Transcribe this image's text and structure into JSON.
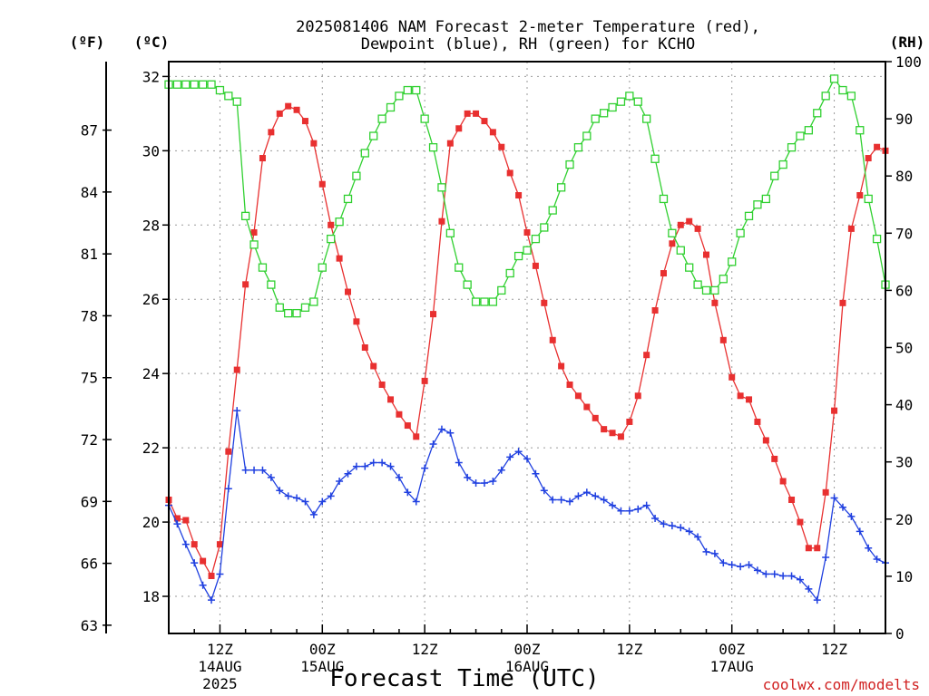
{
  "chart_data": {
    "type": "line",
    "title_line1": "2025081406 NAM Forecast 2-meter Temperature (red),",
    "title_line2": "Dewpoint (blue), RH (green) for KCHO",
    "xlabel": "Forecast Time (UTC)",
    "credit": "coolwx.com/modelts",
    "unit_f": "(ºF)",
    "unit_c": "(ºC)",
    "unit_rh": "(RH)",
    "x_range_hours": [
      6,
      90
    ],
    "c_range": [
      17,
      32.4
    ],
    "rh_range": [
      0,
      100
    ],
    "grid": true,
    "c_ticks": [
      18,
      20,
      22,
      24,
      26,
      28,
      30,
      32
    ],
    "f_ticks": [
      63,
      66,
      69,
      72,
      75,
      78,
      81,
      84,
      87
    ],
    "rh_ticks": [
      0,
      10,
      20,
      30,
      40,
      50,
      60,
      70,
      80,
      90,
      100
    ],
    "x_ticks": [
      {
        "hour": 12,
        "line1": "12Z",
        "line2": "14AUG",
        "line3": "2025"
      },
      {
        "hour": 24,
        "line1": "00Z",
        "line2": "15AUG",
        "line3": ""
      },
      {
        "hour": 36,
        "line1": "12Z",
        "line2": "",
        "line3": ""
      },
      {
        "hour": 48,
        "line1": "00Z",
        "line2": "16AUG",
        "line3": ""
      },
      {
        "hour": 60,
        "line1": "12Z",
        "line2": "",
        "line3": ""
      },
      {
        "hour": 72,
        "line1": "00Z",
        "line2": "17AUG",
        "line3": ""
      },
      {
        "hour": 84,
        "line1": "12Z",
        "line2": "",
        "line3": ""
      }
    ],
    "series": [
      {
        "key": "temperature",
        "color": "#e83030",
        "marker": "filled-square",
        "axis": "c",
        "x": [
          6,
          7,
          8,
          9,
          10,
          11,
          12,
          13,
          14,
          15,
          16,
          17,
          18,
          19,
          20,
          21,
          22,
          23,
          24,
          25,
          26,
          27,
          28,
          29,
          30,
          31,
          32,
          33,
          34,
          35,
          36,
          37,
          38,
          39,
          40,
          41,
          42,
          43,
          44,
          45,
          46,
          47,
          48,
          49,
          50,
          51,
          52,
          53,
          54,
          55,
          56,
          57,
          58,
          59,
          60,
          61,
          62,
          63,
          64,
          65,
          66,
          67,
          68,
          69,
          70,
          71,
          72,
          73,
          74,
          75,
          76,
          77,
          78,
          79,
          80,
          81,
          82,
          83,
          84,
          85,
          86,
          87,
          88,
          89,
          90
        ],
        "values": [
          20.6,
          20.1,
          20.05,
          19.4,
          18.95,
          18.55,
          19.4,
          21.9,
          24.1,
          26.4,
          27.8,
          29.8,
          30.5,
          31.0,
          31.2,
          31.1,
          30.8,
          30.2,
          29.1,
          28.0,
          27.1,
          26.2,
          25.4,
          24.7,
          24.2,
          23.7,
          23.3,
          22.9,
          22.6,
          22.3,
          23.8,
          25.6,
          28.1,
          30.2,
          30.6,
          31.0,
          31.0,
          30.8,
          30.5,
          30.1,
          29.4,
          28.8,
          27.8,
          26.9,
          25.9,
          24.9,
          24.2,
          23.7,
          23.4,
          23.1,
          22.8,
          22.5,
          22.4,
          22.3,
          22.7,
          23.4,
          24.5,
          25.7,
          26.7,
          27.5,
          28.0,
          28.1,
          27.9,
          27.2,
          25.9,
          24.9,
          23.9,
          23.4,
          23.3,
          22.7,
          22.2,
          21.7,
          21.1,
          20.6,
          20.0,
          19.3,
          19.3,
          20.8,
          23.0,
          25.9,
          27.9,
          28.8,
          29.8,
          30.1,
          30.0
        ]
      },
      {
        "key": "dewpoint",
        "color": "#2040e0",
        "marker": "plus",
        "axis": "c",
        "x": [
          6,
          7,
          8,
          9,
          10,
          11,
          12,
          13,
          14,
          15,
          16,
          17,
          18,
          19,
          20,
          21,
          22,
          23,
          24,
          25,
          26,
          27,
          28,
          29,
          30,
          31,
          32,
          33,
          34,
          35,
          36,
          37,
          38,
          39,
          40,
          41,
          42,
          43,
          44,
          45,
          46,
          47,
          48,
          49,
          50,
          51,
          52,
          53,
          54,
          55,
          56,
          57,
          58,
          59,
          60,
          61,
          62,
          63,
          64,
          65,
          66,
          67,
          68,
          69,
          70,
          71,
          72,
          73,
          74,
          75,
          76,
          77,
          78,
          79,
          80,
          81,
          82,
          83,
          84,
          85,
          86,
          87,
          88,
          89,
          90
        ],
        "values": [
          20.45,
          19.95,
          19.4,
          18.9,
          18.3,
          17.9,
          18.6,
          20.9,
          23.0,
          21.4,
          21.4,
          21.4,
          21.2,
          20.85,
          20.7,
          20.65,
          20.55,
          20.2,
          20.55,
          20.7,
          21.1,
          21.3,
          21.5,
          21.5,
          21.6,
          21.6,
          21.5,
          21.2,
          20.8,
          20.55,
          21.45,
          22.1,
          22.5,
          22.4,
          21.6,
          21.2,
          21.05,
          21.05,
          21.1,
          21.4,
          21.75,
          21.9,
          21.7,
          21.3,
          20.85,
          20.6,
          20.6,
          20.55,
          20.7,
          20.8,
          20.7,
          20.6,
          20.45,
          20.3,
          20.3,
          20.35,
          20.45,
          20.1,
          19.95,
          19.9,
          19.85,
          19.75,
          19.6,
          19.2,
          19.15,
          18.9,
          18.85,
          18.8,
          18.85,
          18.7,
          18.6,
          18.6,
          18.55,
          18.55,
          18.45,
          18.2,
          17.9,
          19.05,
          20.65,
          20.4,
          20.15,
          19.75,
          19.3,
          19.0,
          18.9
        ]
      },
      {
        "key": "rh",
        "color": "#30d030",
        "marker": "open-square",
        "axis": "rh",
        "x": [
          6,
          7,
          8,
          9,
          10,
          11,
          12,
          13,
          14,
          15,
          16,
          17,
          18,
          19,
          20,
          21,
          22,
          23,
          24,
          25,
          26,
          27,
          28,
          29,
          30,
          31,
          32,
          33,
          34,
          35,
          36,
          37,
          38,
          39,
          40,
          41,
          42,
          43,
          44,
          45,
          46,
          47,
          48,
          49,
          50,
          51,
          52,
          53,
          54,
          55,
          56,
          57,
          58,
          59,
          60,
          61,
          62,
          63,
          64,
          65,
          66,
          67,
          68,
          69,
          70,
          71,
          72,
          73,
          74,
          75,
          76,
          77,
          78,
          79,
          80,
          81,
          82,
          83,
          84,
          85,
          86,
          87,
          88,
          89,
          90
        ],
        "values": [
          96,
          96,
          96,
          96,
          96,
          96,
          95,
          94,
          93,
          73,
          68,
          64,
          61,
          57,
          56,
          56,
          57,
          58,
          64,
          69,
          72,
          76,
          80,
          84,
          87,
          90,
          92,
          94,
          95,
          95,
          90,
          85,
          78,
          70,
          64,
          61,
          58,
          58,
          58,
          60,
          63,
          66,
          67,
          69,
          71,
          74,
          78,
          82,
          85,
          87,
          90,
          91,
          92,
          93,
          94,
          93,
          90,
          83,
          76,
          70,
          67,
          64,
          61,
          60,
          60,
          62,
          65,
          70,
          73,
          75,
          76,
          80,
          82,
          85,
          87,
          88,
          91,
          94,
          97,
          95,
          94,
          88,
          76,
          69,
          61
        ]
      }
    ]
  }
}
